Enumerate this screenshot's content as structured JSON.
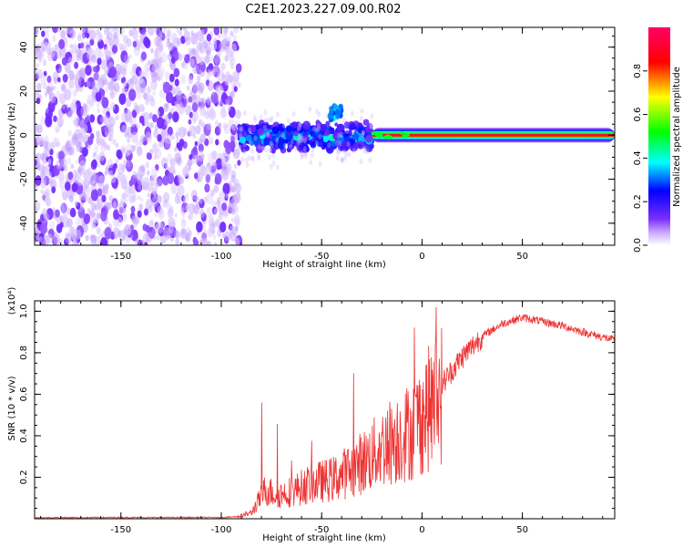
{
  "page": {
    "title": "C2E1.2023.227.09.00.R02"
  },
  "colors": {
    "snr_line": "#ee3333",
    "plot_border": "#000000"
  },
  "chart_data": [
    {
      "type": "heatmap",
      "name": "spectrogram",
      "xlabel": "Height of straight line (km)",
      "ylabel": "Frequency (Hz)",
      "xlim": [
        -193,
        96
      ],
      "ylim": [
        -50,
        49
      ],
      "x_ticks": [
        -150,
        -100,
        -50,
        0,
        50
      ],
      "y_ticks": [
        -40,
        -20,
        0,
        20,
        40
      ],
      "colorbar": {
        "label": "Normalized spectral amplitude",
        "range": [
          0,
          1
        ],
        "ticks": [
          0.0,
          0.2,
          0.4,
          0.6,
          0.8
        ],
        "tick_labels": [
          "0.0",
          "0.2",
          "0.4",
          "0.6",
          "0.8"
        ],
        "colormap": [
          "#ffffff",
          "#7b2fff",
          "#0000ff",
          "#00ffff",
          "#00ff00",
          "#ffff00",
          "#ff0000",
          "#ff0066"
        ]
      },
      "regions": [
        {
          "x_range": [
            -193,
            -91
          ],
          "freq_range": [
            -50,
            49
          ],
          "amplitude": [
            0.02,
            0.25
          ],
          "pattern": "noise"
        },
        {
          "x_range": [
            -91,
            -25
          ],
          "freq_range": [
            -8,
            6
          ],
          "amplitude": [
            0.15,
            0.5
          ],
          "pattern": "band"
        },
        {
          "x_range": [
            -46,
            -40
          ],
          "freq_range": [
            7,
            14
          ],
          "amplitude": [
            0.3,
            0.45
          ],
          "pattern": "blob"
        },
        {
          "x_range": [
            -25,
            96
          ],
          "freq_range": [
            -3,
            3
          ],
          "amplitude": [
            0.5,
            1.0
          ],
          "pattern": "carrier"
        }
      ]
    },
    {
      "type": "line",
      "name": "snr",
      "xlabel": "Height of straight line (km)",
      "ylabel": "SNR (10 * v/v)",
      "y_multiplier": "(x10⁴)",
      "xlim": [
        -193,
        96
      ],
      "ylim": [
        0,
        1.05
      ],
      "x_ticks": [
        -150,
        -100,
        -50,
        0,
        50
      ],
      "y_ticks": [
        0.2,
        0.4,
        0.6,
        0.8,
        1.0
      ],
      "y_tick_labels": [
        "0.2",
        "0.4",
        "0.6",
        "0.8",
        "1.0"
      ],
      "series": [
        {
          "x": [
            -193,
            -150,
            -100,
            -92,
            -85,
            -78,
            -72,
            -65,
            -55,
            -45,
            -35,
            -25,
            -15,
            -5,
            0,
            5,
            10,
            20,
            30,
            40,
            50,
            60,
            70,
            80,
            96
          ],
          "values": [
            0.005,
            0.006,
            0.006,
            0.01,
            0.03,
            0.15,
            0.12,
            0.14,
            0.18,
            0.2,
            0.25,
            0.32,
            0.4,
            0.45,
            0.52,
            0.58,
            0.65,
            0.78,
            0.88,
            0.94,
            0.97,
            0.95,
            0.93,
            0.9,
            0.86
          ]
        }
      ]
    }
  ]
}
